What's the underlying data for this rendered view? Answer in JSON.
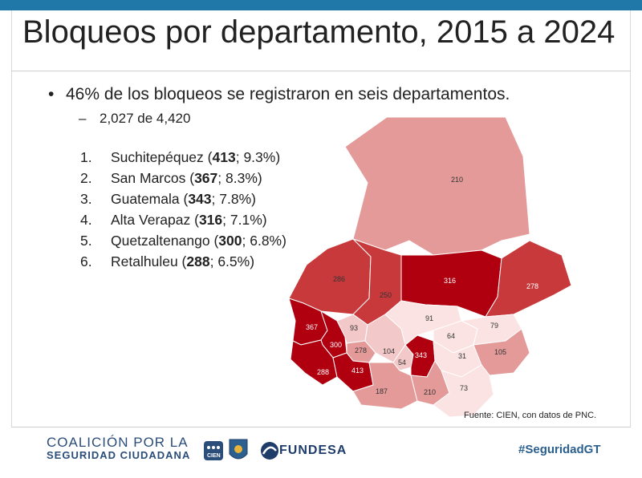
{
  "title": "Bloqueos por departamento, 2015 a 2024",
  "bullet": {
    "marker": "•",
    "text": "46% de los bloqueos se registraron en seis departamentos."
  },
  "sub_bullet": {
    "marker": "–",
    "text": "2,027 de 4,420"
  },
  "ranking": [
    {
      "num": "1.",
      "name": "Suchitepéquez",
      "count": "413",
      "pct": "9.3%"
    },
    {
      "num": "2.",
      "name": "San Marcos",
      "count": "367",
      "pct": "8.3%"
    },
    {
      "num": "3.",
      "name": "Guatemala",
      "count": "343",
      "pct": "7.8%"
    },
    {
      "num": "4.",
      "name": "Alta Verapaz",
      "count": "316",
      "pct": "7.1%"
    },
    {
      "num": "5.",
      "name": "Quetzaltenango",
      "count": "300",
      "pct": "6.8%"
    },
    {
      "num": "6.",
      "name": "Retalhuleu",
      "count": "288",
      "pct": "6.5%"
    }
  ],
  "map_labels": {
    "peten": "210",
    "huehuetenango": "286",
    "quiche": "250",
    "alta_verapaz": "316",
    "izabal": "278",
    "san_marcos": "367",
    "quetzaltenango": "300",
    "retalhuleu": "288",
    "totonicapan": "93",
    "solola": "278",
    "suchitepequez": "413",
    "chimaltenango": "104",
    "sacatepequez": "54",
    "guatemala": "343",
    "baja_verapaz": "91",
    "el_progreso": "64",
    "zacapa": "79",
    "jalapa": "31",
    "chiquimula": "105",
    "escuintla": "187",
    "santa_rosa": "210",
    "jutiapa": "73"
  },
  "colors": {
    "top_bar": "#1f78a8",
    "dark": "#b00010",
    "mid_dark": "#c8393c",
    "mid": "#d56a6b",
    "light": "#e39a99",
    "pale": "#f2c8c8",
    "palest": "#fbe3e3"
  },
  "source": "Fuente: CIEN, con datos de PNC.",
  "footer": {
    "coalition_line1": "COALICIÓN POR LA",
    "coalition_line2": "SEGURIDAD CIUDADANA",
    "cien": "CIEN",
    "fundesa": "FUNDESA",
    "hashtag": "#SeguridadGT"
  }
}
